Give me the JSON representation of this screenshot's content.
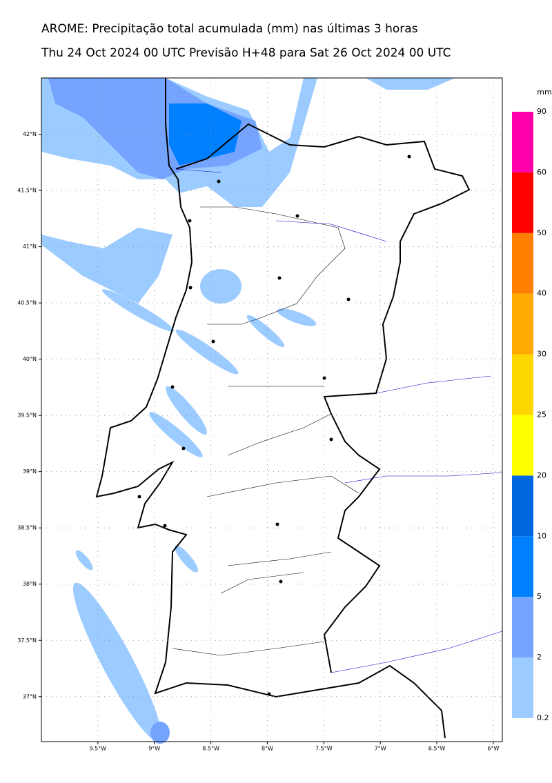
{
  "header": {
    "title": "AROME: Precipitação total acumulada (mm) nas últimas 3 horas",
    "subtitle": "Thu 24 Oct 2024 00 UTC Previsão H+48 para Sat 26 Oct 2024 00 UTC"
  },
  "map": {
    "lonlim": [
      -10,
      -5.92
    ],
    "latlim": [
      36.6,
      42.5
    ],
    "lon_ticks": [
      {
        "value": -9.5,
        "label": "9.5°W"
      },
      {
        "value": -9,
        "label": "9°W"
      },
      {
        "value": -8.5,
        "label": "8.5°W"
      },
      {
        "value": -8,
        "label": "8°W"
      },
      {
        "value": -7.5,
        "label": "7.5°W"
      },
      {
        "value": -7,
        "label": "7°W"
      },
      {
        "value": -6.5,
        "label": "6.5°W"
      },
      {
        "value": -6,
        "label": "6°W"
      }
    ],
    "lat_ticks": [
      {
        "value": 42,
        "label": "42°N"
      },
      {
        "value": 41.5,
        "label": "41.5°N"
      },
      {
        "value": 41,
        "label": "41°N"
      },
      {
        "value": 40.5,
        "label": "40.5°N"
      },
      {
        "value": 40,
        "label": "40°N"
      },
      {
        "value": 39.5,
        "label": "39.5°N"
      },
      {
        "value": 39,
        "label": "39°N"
      },
      {
        "value": 38.5,
        "label": "38.5°N"
      },
      {
        "value": 38,
        "label": "38°N"
      },
      {
        "value": 37.5,
        "label": "37.5°N"
      },
      {
        "value": 37,
        "label": "37°N"
      }
    ]
  },
  "colorbar": {
    "unit": "mm",
    "levels": [
      0.2,
      2,
      5,
      10,
      20,
      25,
      30,
      40,
      50,
      60,
      90
    ],
    "colors": [
      "#9ccbff",
      "#75a4ff",
      "#0080ff",
      "#0066dd",
      "#ffff00",
      "#ffd700",
      "#ffaa00",
      "#ff8000",
      "#ff0000",
      "#ff00aa"
    ]
  }
}
